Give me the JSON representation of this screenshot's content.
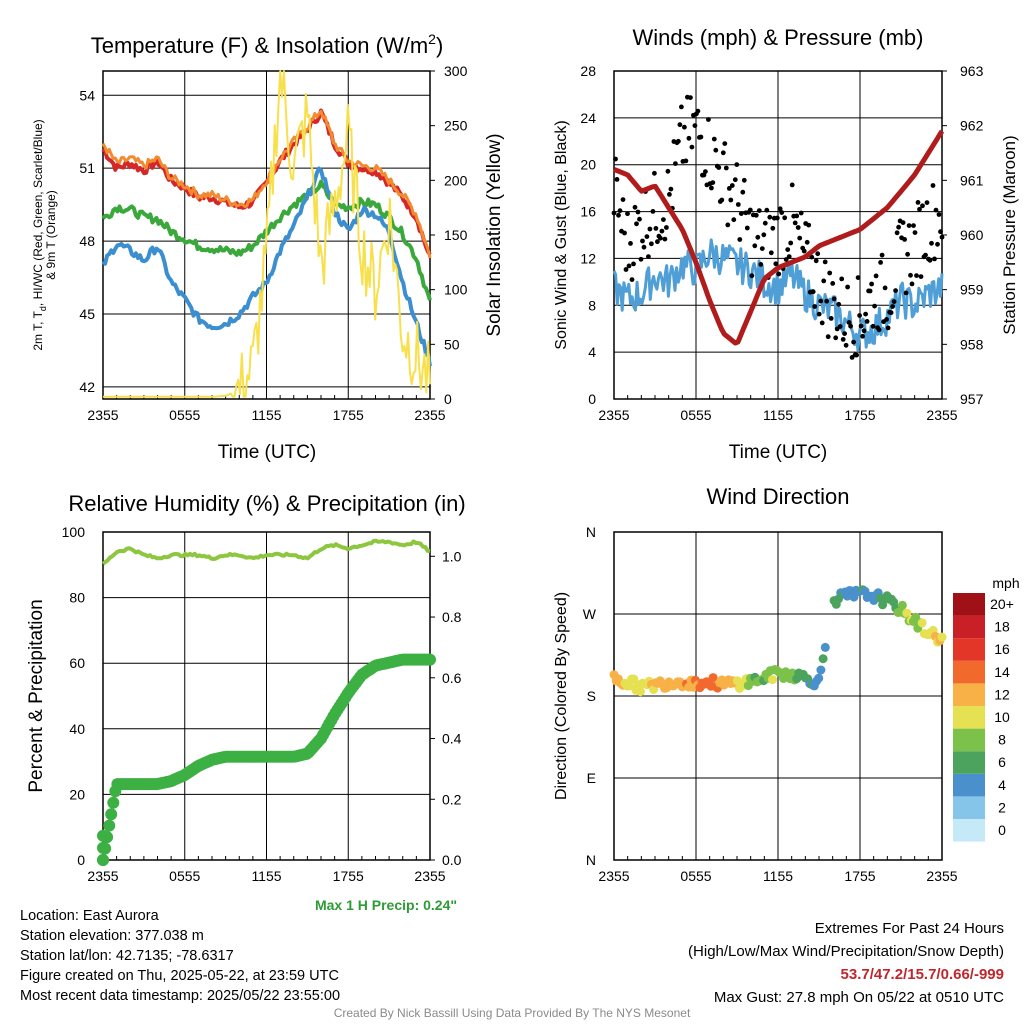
{
  "panels": {
    "temp": {
      "title": "Temperature (F) & Insolation (W/m",
      "title_sup": "2",
      "title_end": ")",
      "ylabel_left_1": "2m T, T",
      "ylabel_left_sub": "d",
      "ylabel_left_2": ", HI/WC (Red, Green, Scarlet/Blue)",
      "ylabel_left_3": "& 9m T (Orange)",
      "ylabel_right": "Solar Insolation (Yellow)",
      "xlabel": "Time (UTC)"
    },
    "winds": {
      "title": "Winds (mph) & Pressure (mb)",
      "ylabel_left": "Sonic Wind & Gust (Blue, Black)",
      "ylabel_right": "Station Pressure (Maroon)",
      "xlabel": "Time (UTC)"
    },
    "rh": {
      "title": "Relative Humidity (%) & Precipitation (in)",
      "ylabel_left": "Percent & Precipitation",
      "max_precip": "Max 1 H Precip: 0.24\""
    },
    "wdir": {
      "title": "Wind Direction",
      "ylabel_left": "Direction (Colored By Speed)",
      "legend_title": "mph"
    }
  },
  "info": {
    "location": "Location: East Aurora",
    "elevation": "Station elevation: 377.038 m",
    "latlon": "Station lat/lon: 42.7135; -78.6317",
    "created": "Figure created on Thu, 2025-05-22, at 23:59 UTC",
    "recent": "Most recent data timestamp: 2025/05/22 23:55:00"
  },
  "extremes": {
    "line1": "Extremes For Past 24 Hours",
    "line2": "(High/Low/Max Wind/Precipitation/Snow Depth)",
    "values": "53.7/47.2/15.7/0.66/-999",
    "gust": "Max Gust: 27.8 mph On 05/22 at 0510 UTC"
  },
  "credit": "Created By Nick Bassill Using Data Provided By The NYS Mesonet",
  "colors": {
    "temp_red": "#d62728",
    "temp_orange": "#f28a30",
    "dewpoint_green": "#3aa83a",
    "dewpoint_blue": "#3b8fd0",
    "solar_yellow": "#f7e04b",
    "wind_blue": "#4f9fd6",
    "gust_black": "#000000",
    "pressure_maroon": "#b01c1c",
    "rh_lightgreen": "#8dc63f",
    "precip_green": "#3cb043"
  },
  "chart_data": [
    {
      "type": "line",
      "id": "temp",
      "x_ticks": [
        "2355",
        "0555",
        "1155",
        "1755",
        "2355"
      ],
      "ylim": [
        41.5,
        55
      ],
      "y_ticks": [
        42,
        45,
        48,
        51,
        54
      ],
      "y2lim": [
        0,
        300
      ],
      "y2_ticks": [
        0,
        50,
        100,
        150,
        200,
        250,
        300
      ],
      "x_hours": [
        0,
        1,
        2,
        3,
        4,
        5,
        6,
        7,
        8,
        9,
        10,
        11,
        12,
        13,
        14,
        15,
        16,
        17,
        18,
        19,
        20,
        21,
        22,
        23,
        24
      ],
      "series": [
        {
          "color": "#d62728",
          "width": 4,
          "axis": "left",
          "values": [
            51.8,
            51.0,
            51.2,
            50.9,
            51.3,
            50.5,
            50.2,
            49.8,
            49.8,
            49.6,
            49.4,
            49.6,
            50.4,
            51.3,
            52.0,
            52.6,
            53.3,
            52.0,
            51.2,
            51.0,
            50.9,
            50.4,
            49.8,
            49.0,
            47.3
          ]
        },
        {
          "color": "#f28a30",
          "width": 3,
          "axis": "left",
          "values": [
            52.0,
            51.2,
            51.4,
            51.1,
            51.4,
            50.6,
            50.3,
            49.9,
            49.9,
            49.7,
            49.5,
            49.7,
            50.5,
            51.4,
            52.1,
            52.7,
            53.4,
            52.0,
            51.3,
            51.1,
            51.0,
            50.5,
            49.9,
            49.1,
            47.4
          ]
        },
        {
          "color": "#3aa83a",
          "width": 4,
          "axis": "left",
          "values": [
            48.9,
            49.4,
            49.3,
            49.0,
            48.9,
            48.4,
            48.1,
            47.8,
            47.7,
            47.6,
            47.5,
            47.8,
            48.4,
            49.0,
            49.5,
            49.9,
            50.3,
            49.5,
            49.4,
            49.6,
            49.5,
            49.0,
            48.3,
            47.3,
            45.5
          ]
        },
        {
          "color": "#3b8fd0",
          "width": 4,
          "axis": "left",
          "values": [
            47.0,
            47.9,
            47.6,
            47.2,
            47.8,
            46.3,
            45.6,
            44.8,
            44.5,
            44.6,
            45.0,
            45.7,
            46.3,
            47.6,
            48.6,
            49.8,
            51.0,
            49.2,
            48.4,
            49.3,
            49.1,
            48.4,
            46.3,
            44.6,
            43.0
          ]
        },
        {
          "color": "#f7e04b",
          "width": 2,
          "axis": "right",
          "values": [
            2,
            2,
            2,
            2,
            2,
            2,
            2,
            2,
            2,
            3,
            8,
            30,
            130,
            300,
            210,
            260,
            120,
            180,
            240,
            140,
            100,
            170,
            60,
            40,
            15
          ]
        }
      ]
    },
    {
      "type": "line",
      "id": "winds",
      "x_ticks": [
        "2355",
        "0555",
        "1155",
        "1755",
        "2355"
      ],
      "ylim": [
        0,
        28
      ],
      "y_ticks": [
        0,
        4,
        8,
        12,
        16,
        20,
        24,
        28
      ],
      "y2lim": [
        957,
        963
      ],
      "y2_ticks": [
        957,
        958,
        959,
        960,
        961,
        962,
        963
      ],
      "wind_values": [
        9.5,
        8.5,
        9.0,
        10.5,
        10.0,
        11.5,
        11.0,
        12.5,
        12.0,
        11.5,
        11.0,
        10.0,
        9.5,
        10.5,
        9.0,
        8.0,
        7.5,
        6.5,
        5.5,
        6.0,
        7.0,
        8.5,
        8.0,
        9.0,
        9.5
      ],
      "gust_values": [
        18,
        13,
        15,
        16,
        17,
        22,
        23,
        21,
        19,
        17,
        14,
        13,
        14,
        15,
        12,
        10,
        8,
        7,
        7,
        9,
        9,
        12,
        13,
        15,
        16
      ],
      "pressure_values": [
        961.2,
        961.1,
        960.8,
        960.9,
        960.5,
        960.1,
        959.5,
        958.8,
        958.2,
        958.0,
        958.6,
        959.2,
        959.4,
        959.5,
        959.6,
        959.8,
        959.9,
        960.0,
        960.1,
        960.3,
        960.5,
        960.8,
        961.1,
        961.5,
        961.9
      ]
    },
    {
      "type": "line",
      "id": "rh",
      "x_ticks": [
        "2355",
        "0555",
        "1155",
        "1755",
        "2355"
      ],
      "ylim": [
        0,
        100
      ],
      "y_ticks": [
        0,
        20,
        40,
        60,
        80,
        100
      ],
      "y2lim": [
        0,
        1.08
      ],
      "y2_ticks": [
        "0.0",
        "0.2",
        "0.4",
        "0.6",
        "0.8",
        "1.0"
      ],
      "rh_values": [
        90,
        94,
        95,
        93,
        92,
        93,
        93,
        93,
        92,
        93,
        93,
        92,
        93,
        93,
        93,
        92,
        95,
        96,
        95,
        96,
        97,
        97,
        96,
        97,
        94
      ],
      "precip_values": [
        0.0,
        0.25,
        0.25,
        0.25,
        0.25,
        0.26,
        0.28,
        0.31,
        0.33,
        0.34,
        0.34,
        0.34,
        0.34,
        0.34,
        0.34,
        0.35,
        0.4,
        0.48,
        0.55,
        0.61,
        0.64,
        0.65,
        0.66,
        0.66,
        0.66
      ]
    },
    {
      "type": "scatter",
      "id": "wdir",
      "x_ticks": [
        "2355",
        "0555",
        "1155",
        "1755",
        "2355"
      ],
      "y_ticks": [
        "N",
        "E",
        "S",
        "W",
        "N"
      ],
      "legend_labels": [
        "0",
        "2",
        "4",
        "6",
        "8",
        "10",
        "12",
        "14",
        "16",
        "18",
        "20+"
      ],
      "legend_colors": [
        "#c6e9f8",
        "#86c5ea",
        "#4a90cc",
        "#4ba35e",
        "#7cc24a",
        "#e6e053",
        "#f8b146",
        "#f2692d",
        "#e33528",
        "#c91f27",
        "#9f1116"
      ],
      "direction_deg": [
        200,
        195,
        190,
        192,
        195,
        196,
        194,
        195,
        193,
        194,
        196,
        200,
        205,
        204,
        200,
        195,
        285,
        290,
        292,
        290,
        284,
        275,
        262,
        250,
        242
      ],
      "speed_mph": [
        12,
        10,
        10,
        11,
        12,
        12,
        13,
        14,
        12,
        11,
        8,
        7,
        9,
        8,
        5,
        4,
        6,
        4,
        4,
        5,
        6,
        8,
        9,
        10,
        11
      ]
    }
  ]
}
